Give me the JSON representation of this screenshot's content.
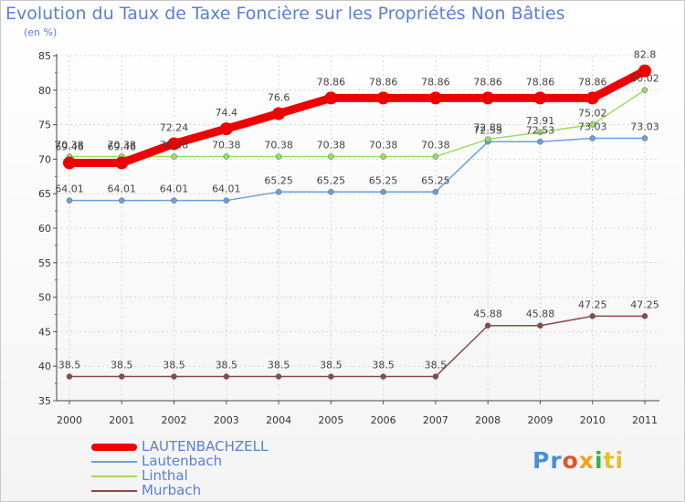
{
  "chart_data": {
    "type": "line",
    "title": "Evolution du Taux de Taxe Foncière sur les Propriétés Non Bâties",
    "ylabel": "(en %)",
    "ylim": [
      35,
      85
    ],
    "yticks": [
      35,
      40,
      45,
      50,
      55,
      60,
      65,
      70,
      75,
      80,
      85
    ],
    "x": [
      "2000",
      "2001",
      "2002",
      "2003",
      "2004",
      "2005",
      "2006",
      "2007",
      "2008",
      "2009",
      "2010",
      "2011"
    ],
    "grid": true,
    "legend_position": "bottom-left",
    "series": [
      {
        "name": "LAUTENBACHZELL",
        "color": "#ee0000",
        "values": [
          69.46,
          69.46,
          72.24,
          74.4,
          76.6,
          78.86,
          78.86,
          78.86,
          78.86,
          78.86,
          78.86,
          82.8
        ],
        "labels": [
          "69.46",
          "69.46",
          "72.24",
          "74.4",
          "76.6",
          "78.86",
          "78.86",
          "78.86",
          "78.86",
          "78.86",
          "78.86",
          "82.8"
        ]
      },
      {
        "name": "Lautenbach",
        "color": "#6ea0d8",
        "values": [
          64.01,
          64.01,
          64.01,
          64.01,
          65.25,
          65.25,
          65.25,
          65.25,
          72.53,
          72.53,
          73.03,
          73.03
        ],
        "labels": [
          "64.01",
          "64.01",
          "64.01",
          "64.01",
          "65.25",
          "65.25",
          "65.25",
          "65.25",
          "72.53",
          "72.53",
          "73.03",
          "73.03"
        ]
      },
      {
        "name": "Linthal",
        "color": "#99dd66",
        "values": [
          70.38,
          70.38,
          70.38,
          70.38,
          70.38,
          70.38,
          70.38,
          70.38,
          72.88,
          73.91,
          75.02,
          80.02
        ],
        "labels": [
          "70.38",
          "70.38",
          "70.38",
          "70.38",
          "70.38",
          "70.38",
          "70.38",
          "70.38",
          "72.88",
          "73.91",
          "75.02",
          "80.02"
        ]
      },
      {
        "name": "Murbach",
        "color": "#8b4a4a",
        "values": [
          38.5,
          38.5,
          38.5,
          38.5,
          38.5,
          38.5,
          38.5,
          38.5,
          45.88,
          45.88,
          47.25,
          47.25
        ],
        "labels": [
          "38.5",
          "38.5",
          "38.5",
          "38.5",
          "38.5",
          "38.5",
          "38.5",
          "38.5",
          "45.88",
          "45.88",
          "47.25",
          "47.25"
        ]
      }
    ]
  },
  "logo": {
    "letters": [
      "Pr",
      "o",
      "x",
      "i",
      "ti"
    ]
  }
}
